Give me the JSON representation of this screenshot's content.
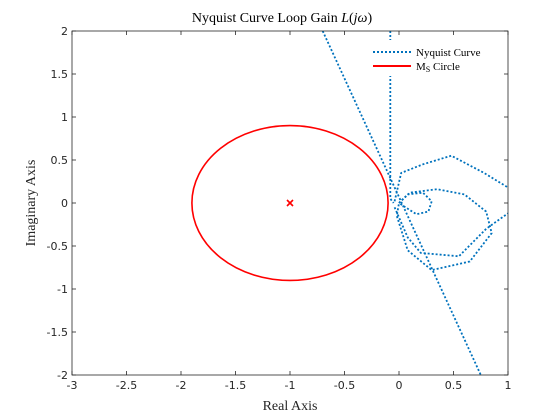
{
  "chart_data": {
    "type": "line",
    "title": "Nyquist Curve Loop Gain L(jω)",
    "xlabel": "Real Axis",
    "ylabel": "Imaginary Axis",
    "xlim": [
      -3,
      1
    ],
    "ylim": [
      -2,
      2
    ],
    "xticks": [
      "-3",
      "-2.5",
      "-2",
      "-1.5",
      "-1",
      "-0.5",
      "0",
      "0.5",
      "1"
    ],
    "yticks": [
      "2",
      "1.5",
      "1",
      "0.5",
      "0",
      "-0.5",
      "-1",
      "-1.5",
      "-2"
    ],
    "legend": {
      "position": "top-right",
      "entries": [
        "Nyquist Curve",
        "Ms Circle"
      ]
    },
    "colors": {
      "nyquist": "#0072bd",
      "ms_circle": "#ff0000",
      "critical_point": "#ff0000"
    },
    "critical_point": {
      "x": -1,
      "y": 0,
      "marker": "x"
    },
    "series": [
      {
        "name": "Nyquist Curve",
        "style": "dotted",
        "segments": [
          [
            [
              -0.7,
              2.0
            ],
            [
              0.75,
              -2.0
            ]
          ],
          [
            [
              -0.08,
              2.0
            ],
            [
              -0.08,
              0.05
            ],
            [
              -0.05,
              0.0
            ]
          ],
          [
            [
              -0.04,
              0.02
            ],
            [
              0.02,
              0.35
            ],
            [
              0.22,
              0.45
            ],
            [
              0.48,
              0.55
            ],
            [
              0.78,
              0.35
            ],
            [
              1.0,
              0.18
            ]
          ],
          [
            [
              -0.04,
              -0.05
            ],
            [
              0.08,
              -0.4
            ],
            [
              0.2,
              -0.58
            ],
            [
              0.55,
              -0.62
            ],
            [
              0.8,
              -0.3
            ],
            [
              1.0,
              -0.12
            ]
          ],
          [
            [
              0.0,
              0.0
            ],
            [
              0.1,
              0.12
            ],
            [
              0.35,
              0.16
            ],
            [
              0.6,
              0.1
            ],
            [
              0.8,
              -0.1
            ],
            [
              0.85,
              -0.35
            ],
            [
              0.65,
              -0.68
            ],
            [
              0.3,
              -0.78
            ],
            [
              0.08,
              -0.55
            ],
            [
              -0.02,
              -0.15
            ],
            [
              0.0,
              0.0
            ]
          ],
          [
            [
              0.0,
              0.0
            ],
            [
              0.08,
              0.1
            ],
            [
              0.22,
              0.12
            ],
            [
              0.3,
              0.02
            ],
            [
              0.27,
              -0.1
            ],
            [
              0.16,
              -0.13
            ],
            [
              0.06,
              -0.05
            ],
            [
              0.0,
              0.0
            ]
          ]
        ]
      },
      {
        "name": "Ms Circle",
        "style": "solid",
        "center": [
          -1,
          0
        ],
        "radius": 0.9
      }
    ]
  }
}
